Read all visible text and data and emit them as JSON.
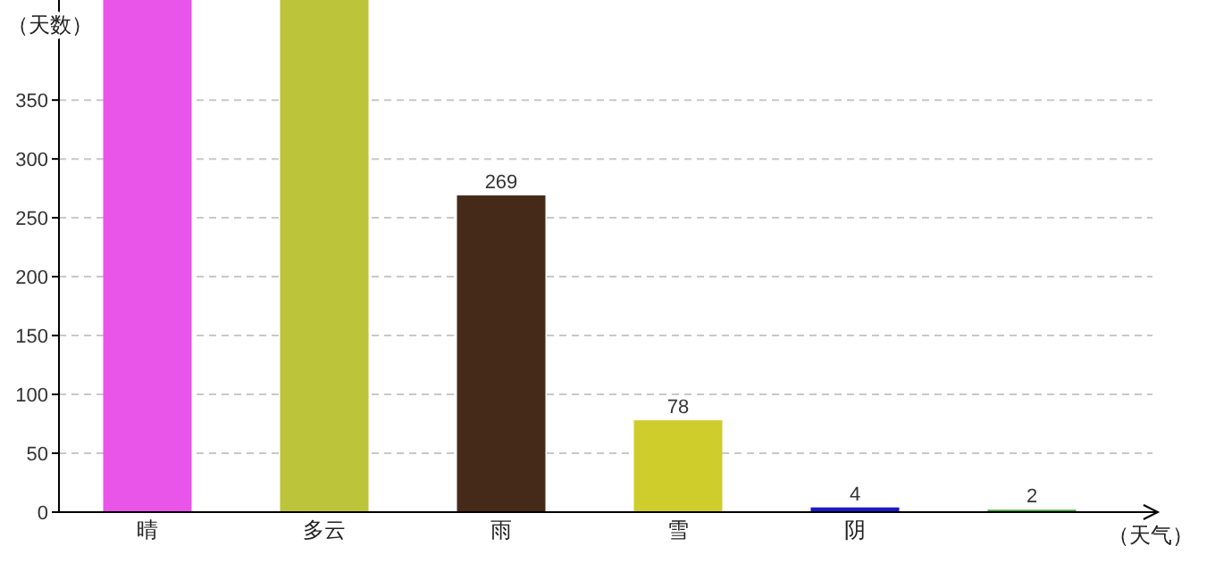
{
  "chart_data": {
    "type": "bar",
    "ylabel": "（天数）",
    "xlabel": "（天气）",
    "categories": [
      "晴",
      "多云",
      "雨",
      "雪",
      "阴",
      null
    ],
    "values": [
      435,
      435,
      269,
      78,
      4,
      2
    ],
    "colors": [
      "#e855e8",
      "#bcc43a",
      "#452a1a",
      "#cfcd2c",
      "#1b1bc4",
      "#3ea33e"
    ],
    "value_labels": [
      null,
      null,
      "269",
      "78",
      "4",
      "2"
    ],
    "ylim": [
      0,
      435
    ],
    "yticks": [
      0,
      50,
      100,
      150,
      200,
      250,
      300,
      350
    ],
    "grid": "y"
  }
}
